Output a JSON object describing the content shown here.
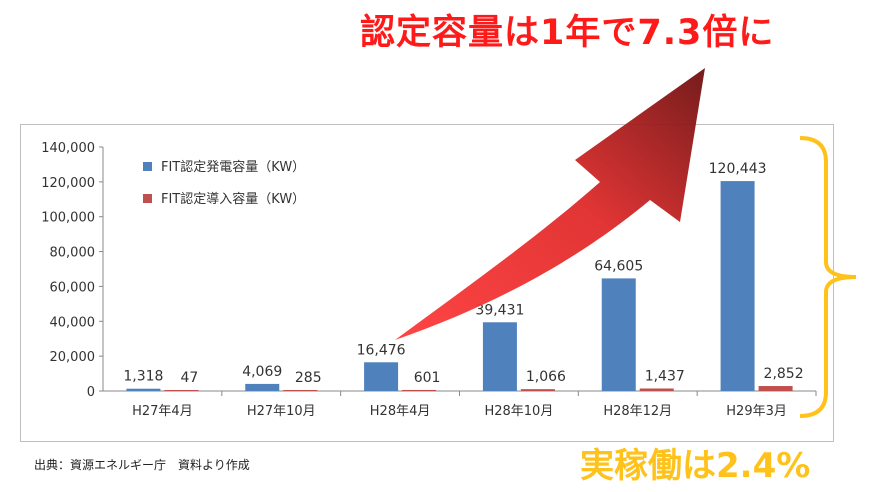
{
  "headline": "認定容量は1年で7.3倍に",
  "operation_rate": "実稼働は2.4%",
  "footer_note": "出典：資源エネルギー庁　資料より作成",
  "colors": {
    "series1": "#4f81bd",
    "series2": "#c0504d",
    "headline": "#ff1a1a",
    "operation_rate": "#ffc21a",
    "bracket": "#ffc21a",
    "arrow_dark": "#7a1414",
    "arrow_light": "#ff3b3b"
  },
  "chart_data": {
    "type": "bar",
    "categories": [
      "H27年4月",
      "H27年10月",
      "H28年4月",
      "H28年10月",
      "H28年12月",
      "H29年3月"
    ],
    "series": [
      {
        "name": "FIT認定発電容量（KW）",
        "values": [
          1318,
          4069,
          16476,
          39431,
          64605,
          120443
        ],
        "labels": [
          "1,318",
          "4,069",
          "16,476",
          "39,431",
          "64,605",
          "120,443"
        ]
      },
      {
        "name": "FIT認定導入容量（KW）",
        "values": [
          47,
          285,
          601,
          1066,
          1437,
          2852
        ],
        "labels": [
          "47",
          "285",
          "601",
          "1,066",
          "1,437",
          "2,852"
        ]
      }
    ],
    "yticks": [
      "0",
      "20,000",
      "40,000",
      "60,000",
      "80,000",
      "100,000",
      "120,000",
      "140,000"
    ],
    "ylim": [
      0,
      140000
    ],
    "legend_position": "top-left",
    "grid": false
  }
}
